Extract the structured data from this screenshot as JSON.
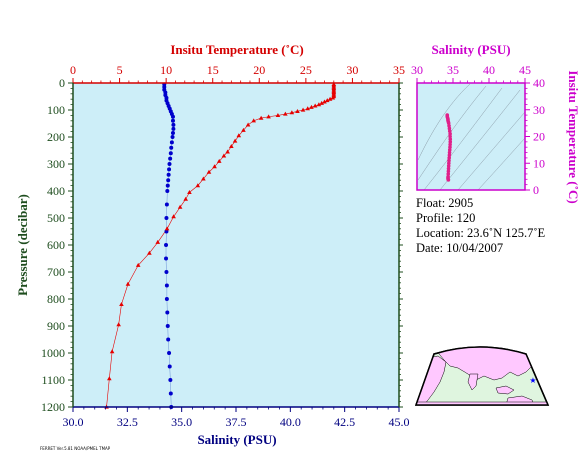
{
  "chart_data": [
    {
      "type": "line",
      "name": "profile",
      "top_axis": {
        "label": "Insitu Temperature (˚C)",
        "range": [
          0,
          35
        ],
        "ticks": [
          "0",
          "5",
          "10",
          "15",
          "20",
          "25",
          "30",
          "35"
        ],
        "color": "#d40000"
      },
      "bottom_axis": {
        "label": "Salinity (PSU)",
        "range": [
          30.0,
          45.0
        ],
        "ticks": [
          "30.0",
          "32.5",
          "35.0",
          "37.5",
          "40.0",
          "42.5",
          "45.0"
        ],
        "color": "#000080"
      },
      "left_axis": {
        "label": "Pressure (decibar)",
        "range": [
          0,
          1200
        ],
        "reversed": true,
        "ticks": [
          "0",
          "100",
          "200",
          "300",
          "400",
          "500",
          "600",
          "700",
          "800",
          "900",
          "1000",
          "1100",
          "1200"
        ],
        "color": "#1e4d1e"
      },
      "background": "#cdeef8",
      "temperature_series": {
        "color": "#e60000",
        "marker": "triangle",
        "points": [
          [
            28.0,
            5
          ],
          [
            28.0,
            10
          ],
          [
            28.0,
            15
          ],
          [
            28.0,
            20
          ],
          [
            28.0,
            25
          ],
          [
            28.0,
            30
          ],
          [
            28.0,
            35
          ],
          [
            28.0,
            40
          ],
          [
            28.0,
            45
          ],
          [
            28.0,
            50
          ],
          [
            27.9,
            55
          ],
          [
            27.6,
            60
          ],
          [
            27.3,
            65
          ],
          [
            27.0,
            70
          ],
          [
            26.7,
            75
          ],
          [
            26.4,
            80
          ],
          [
            26.0,
            85
          ],
          [
            25.6,
            90
          ],
          [
            25.2,
            95
          ],
          [
            24.7,
            100
          ],
          [
            24.1,
            105
          ],
          [
            23.5,
            110
          ],
          [
            22.8,
            115
          ],
          [
            22.0,
            120
          ],
          [
            21.0,
            125
          ],
          [
            20.2,
            130
          ],
          [
            19.4,
            140
          ],
          [
            18.8,
            155
          ],
          [
            18.3,
            175
          ],
          [
            17.8,
            195
          ],
          [
            17.4,
            215
          ],
          [
            17.0,
            235
          ],
          [
            16.6,
            255
          ],
          [
            16.2,
            270
          ],
          [
            15.7,
            290
          ],
          [
            15.2,
            310
          ],
          [
            14.6,
            330
          ],
          [
            14.0,
            355
          ],
          [
            13.4,
            380
          ],
          [
            12.5,
            405
          ],
          [
            12.1,
            430
          ],
          [
            11.5,
            460
          ],
          [
            10.8,
            495
          ],
          [
            10.1,
            540
          ],
          [
            9.1,
            590
          ],
          [
            8.2,
            630
          ],
          [
            7.0,
            675
          ],
          [
            5.9,
            745
          ],
          [
            5.2,
            820
          ],
          [
            4.9,
            895
          ],
          [
            4.2,
            995
          ],
          [
            3.9,
            1095
          ],
          [
            3.6,
            1200
          ]
        ]
      },
      "salinity_series": {
        "color": "#0000cc",
        "marker": "dot",
        "points": [
          [
            34.2,
            5
          ],
          [
            34.2,
            15
          ],
          [
            34.2,
            25
          ],
          [
            34.25,
            35
          ],
          [
            34.25,
            45
          ],
          [
            34.3,
            55
          ],
          [
            34.3,
            65
          ],
          [
            34.35,
            75
          ],
          [
            34.4,
            85
          ],
          [
            34.45,
            95
          ],
          [
            34.5,
            105
          ],
          [
            34.55,
            115
          ],
          [
            34.6,
            125
          ],
          [
            34.6,
            140
          ],
          [
            34.62,
            155
          ],
          [
            34.62,
            170
          ],
          [
            34.6,
            185
          ],
          [
            34.58,
            200
          ],
          [
            34.55,
            220
          ],
          [
            34.52,
            240
          ],
          [
            34.5,
            260
          ],
          [
            34.47,
            280
          ],
          [
            34.44,
            300
          ],
          [
            34.42,
            320
          ],
          [
            34.4,
            340
          ],
          [
            34.38,
            360
          ],
          [
            34.36,
            380
          ],
          [
            34.34,
            400
          ],
          [
            34.32,
            450
          ],
          [
            34.3,
            500
          ],
          [
            34.3,
            550
          ],
          [
            34.28,
            600
          ],
          [
            34.28,
            650
          ],
          [
            34.3,
            700
          ],
          [
            34.32,
            750
          ],
          [
            34.32,
            800
          ],
          [
            34.34,
            850
          ],
          [
            34.36,
            900
          ],
          [
            34.38,
            950
          ],
          [
            34.42,
            1000
          ],
          [
            34.45,
            1050
          ],
          [
            34.48,
            1100
          ],
          [
            34.5,
            1150
          ],
          [
            34.52,
            1200
          ]
        ]
      }
    },
    {
      "type": "scatter",
      "name": "ts_diagram",
      "top_axis": {
        "label": "Salinity (PSU)",
        "range": [
          30,
          45
        ],
        "ticks": [
          "30",
          "35",
          "40",
          "45"
        ],
        "color": "#cc00cc"
      },
      "right_axis": {
        "label": "Insitu Temperature (˚C)",
        "range": [
          0,
          40
        ],
        "ticks": [
          "0",
          "10",
          "20",
          "30",
          "40"
        ],
        "color": "#cc00cc"
      },
      "background": "#cdeef8",
      "color": "#e0208a",
      "points": [
        [
          34.2,
          28
        ],
        [
          34.2,
          27.5
        ],
        [
          34.25,
          27
        ],
        [
          34.3,
          26.5
        ],
        [
          34.3,
          26
        ],
        [
          34.35,
          25.5
        ],
        [
          34.4,
          25
        ],
        [
          34.45,
          24
        ],
        [
          34.5,
          23
        ],
        [
          34.55,
          22
        ],
        [
          34.6,
          21
        ],
        [
          34.6,
          20
        ],
        [
          34.62,
          19
        ],
        [
          34.62,
          18
        ],
        [
          34.6,
          17
        ],
        [
          34.58,
          16
        ],
        [
          34.55,
          15
        ],
        [
          34.52,
          14
        ],
        [
          34.5,
          13
        ],
        [
          34.47,
          12
        ],
        [
          34.44,
          11
        ],
        [
          34.42,
          10
        ],
        [
          34.4,
          9
        ],
        [
          34.38,
          8
        ],
        [
          34.36,
          7
        ],
        [
          34.34,
          6
        ],
        [
          34.32,
          5
        ],
        [
          34.3,
          4.5
        ],
        [
          34.32,
          4.0
        ],
        [
          34.36,
          3.8
        ]
      ]
    }
  ],
  "info": {
    "float": "Float:  2905",
    "profile": "Profile:  120",
    "location": "Location:  23.6˚N  125.7˚E",
    "date": "Date:  10/04/2007"
  },
  "map": {
    "ocean_color": "#dff5df",
    "land_color": "#ffc8ff",
    "float_marker_color": "#0000ff",
    "float_position": {
      "lat": 23.6,
      "lon": 125.7
    }
  },
  "footer": {
    "tiny_text": "FERRET Ver.5.81 NOAA/PMEL TMAP"
  }
}
